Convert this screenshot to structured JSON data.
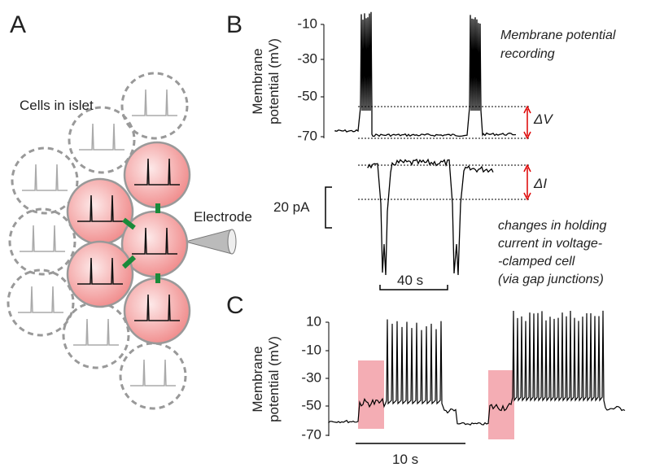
{
  "panel_a": {
    "label": "A",
    "cells_label": "Cells in islet",
    "electrode_label": "Electrode"
  },
  "panel_b": {
    "label": "B",
    "y_label_lines": [
      "Membrane",
      "potential (mV)"
    ],
    "yticks": [
      -10,
      -30,
      -50,
      -70
    ],
    "note_top_lines": [
      "Membrane potential",
      "recording"
    ],
    "delta_v": "ΔV",
    "delta_i": "ΔI",
    "current_scale": "20 pA",
    "time_scale": "40 s",
    "note_bottom_lines": [
      "changes in holding",
      "current in voltage-",
      "-clamped cell",
      "(via gap junctions)"
    ]
  },
  "panel_c": {
    "label": "C",
    "y_label_lines": [
      "Membrane",
      "potential (mV)"
    ],
    "yticks": [
      10,
      -10,
      -30,
      -50,
      -70
    ],
    "time_scale": "10 s"
  }
}
